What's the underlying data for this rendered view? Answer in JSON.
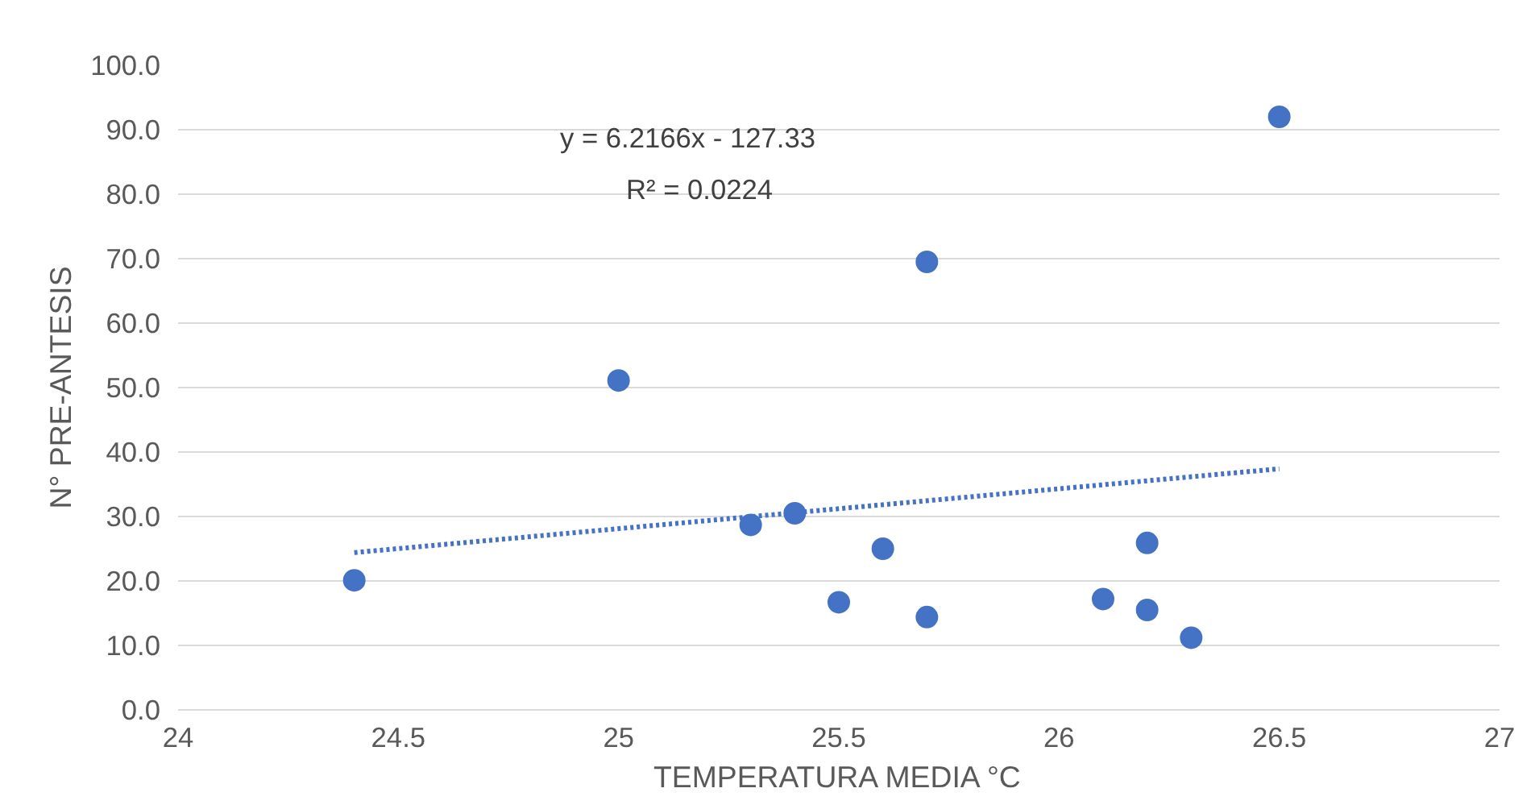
{
  "chart_data": {
    "type": "scatter",
    "xlabel": "TEMPERATURA MEDIA °C",
    "ylabel": "N° PRE-ANTESIS",
    "xlim": [
      24,
      27
    ],
    "xticks": [
      24,
      24.5,
      25,
      25.5,
      26,
      26.5,
      27
    ],
    "ylim": [
      0,
      100
    ],
    "yticks": [
      {
        "value": 0,
        "label": "0.0"
      },
      {
        "value": 10,
        "label": "10.0"
      },
      {
        "value": 20,
        "label": "20.0"
      },
      {
        "value": 30,
        "label": "30.0"
      },
      {
        "value": 40,
        "label": "40.0"
      },
      {
        "value": 50,
        "label": "50.0"
      },
      {
        "value": 60,
        "label": "60.0"
      },
      {
        "value": 70,
        "label": "70.0"
      },
      {
        "value": 80,
        "label": "80.0"
      },
      {
        "value": 90,
        "label": "90.0"
      },
      {
        "value": 100,
        "label": "100.0"
      }
    ],
    "grid": "y",
    "marker": "circle",
    "annotations": [
      "y = 6.2166x - 127.33",
      "R² = 0.0224"
    ],
    "series": [
      {
        "color": "#4472c4",
        "x": [
          24.4,
          25.0,
          25.3,
          25.4,
          25.5,
          25.6,
          25.7,
          25.7,
          26.1,
          26.2,
          26.2,
          26.3,
          26.5
        ],
        "values": [
          20.1,
          51.1,
          28.7,
          30.5,
          16.7,
          25.0,
          69.5,
          14.4,
          17.2,
          25.9,
          15.5,
          11.2,
          92.0
        ]
      },
      {
        "type": "line",
        "line_style": "dotted",
        "marker": "none",
        "color": "#4472c4",
        "x": [
          24.4,
          26.5
        ],
        "values": [
          24.4,
          37.4
        ]
      }
    ]
  }
}
